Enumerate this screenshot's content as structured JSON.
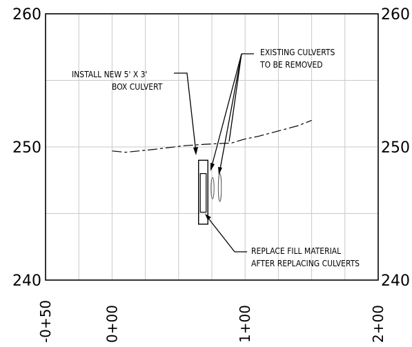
{
  "chart_data": {
    "type": "profile",
    "y_axis": {
      "range": [
        240,
        260
      ],
      "left_labels": [
        "260",
        "250",
        "240"
      ],
      "right_labels": [
        "260",
        "250",
        "240"
      ]
    },
    "x_axis": {
      "range": [
        -50,
        200
      ],
      "labels": [
        "-0+50",
        "0+00",
        "1+00",
        "2+00"
      ]
    },
    "ground_line": {
      "style": "dashed",
      "x": [
        0,
        10,
        30,
        55,
        70,
        90,
        100,
        110,
        125,
        140,
        150
      ],
      "y": [
        249.7,
        249.6,
        249.8,
        250.1,
        250.2,
        250.3,
        250.6,
        250.8,
        251.2,
        251.6,
        252.0
      ]
    },
    "box_culvert": {
      "x_range": [
        65,
        72
      ],
      "elev_range": [
        244.2,
        249.0
      ],
      "inner_x_range": [
        66.3,
        70.7
      ],
      "inner_elev_range": [
        245.1,
        248.0
      ]
    },
    "existing_culverts": [
      {
        "x": 75.5,
        "elev_range": [
          246.1,
          247.7
        ]
      },
      {
        "x": 81,
        "elev_range": [
          245.9,
          248.0
        ]
      }
    ],
    "annotations": {
      "install": [
        "INSTALL NEW 5' X 3'",
        "BOX CULVERT"
      ],
      "existing": [
        "EXISTING CULVERTS",
        "TO BE REMOVED"
      ],
      "replace": [
        "REPLACE FILL MATERIAL",
        "AFTER REPLACING CULVERTS"
      ]
    }
  },
  "colors": {
    "grid": "#c8c8c8",
    "ink": "#000000"
  }
}
